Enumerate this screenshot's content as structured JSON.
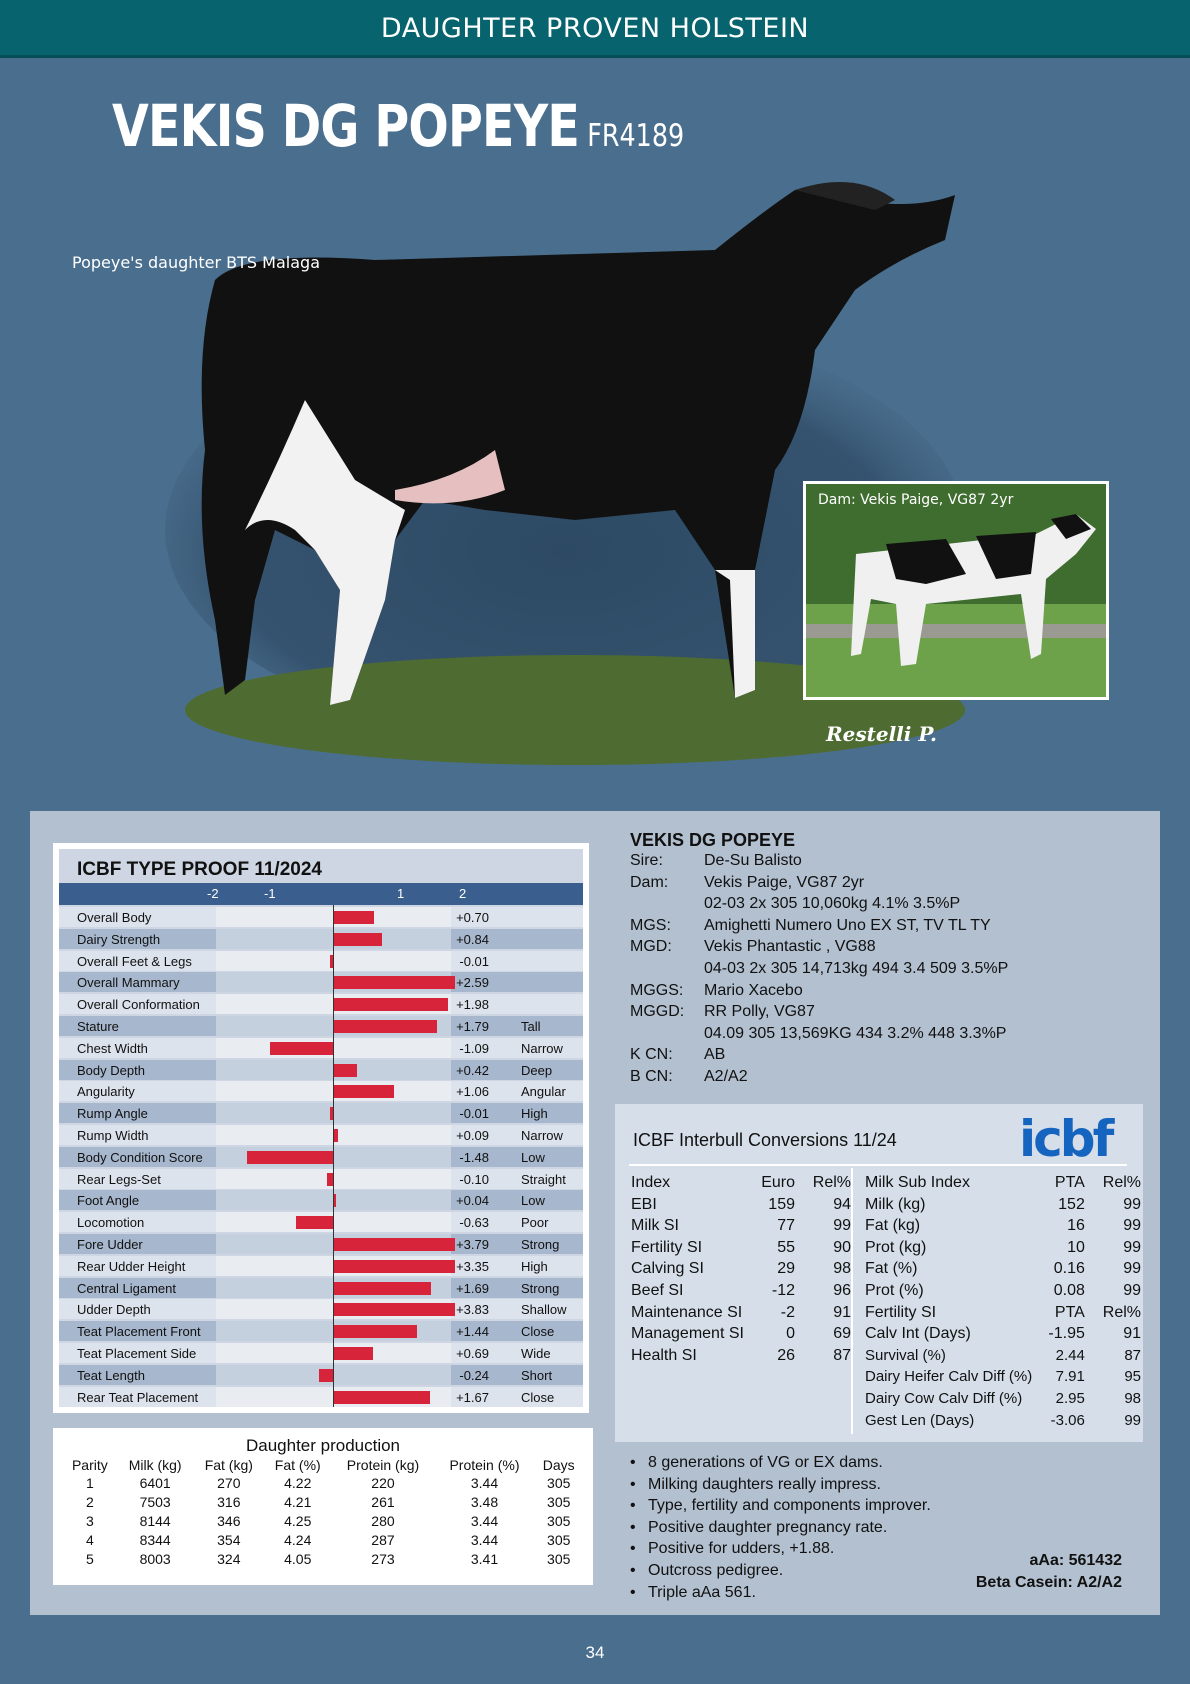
{
  "header": {
    "category": "DAUGHTER PROVEN HOLSTEIN"
  },
  "bull": {
    "name": "VEKIS DG POPEYE",
    "code": "FR4189"
  },
  "main_photo": {
    "caption": "Popeye's daughter BTS Malaga",
    "signature": "Restelli P."
  },
  "dam_photo": {
    "caption": "Dam: Vekis Paige, VG87 2yr"
  },
  "type_proof": {
    "title": "ICBF TYPE PROOF 11/2024",
    "scale": [
      "-2",
      "-1",
      "1",
      "2"
    ],
    "traits": [
      {
        "label": "Overall Body",
        "value": "+0.70",
        "num": 0.7,
        "desc": ""
      },
      {
        "label": "Dairy Strength",
        "value": "+0.84",
        "num": 0.84,
        "desc": ""
      },
      {
        "label": "Overall Feet & Legs",
        "value": "-0.01",
        "num": -0.01,
        "desc": ""
      },
      {
        "label": "Overall Mammary",
        "value": "+2.59",
        "num": 2.59,
        "desc": ""
      },
      {
        "label": "Overall Conformation",
        "value": "+1.98",
        "num": 1.98,
        "desc": ""
      },
      {
        "label": "Stature",
        "value": "+1.79",
        "num": 1.79,
        "desc": "Tall"
      },
      {
        "label": "Chest Width",
        "value": "-1.09",
        "num": -1.09,
        "desc": "Narrow"
      },
      {
        "label": "Body Depth",
        "value": "+0.42",
        "num": 0.42,
        "desc": "Deep"
      },
      {
        "label": "Angularity",
        "value": "+1.06",
        "num": 1.06,
        "desc": "Angular"
      },
      {
        "label": "Rump Angle",
        "value": "-0.01",
        "num": -0.01,
        "desc": "High"
      },
      {
        "label": "Rump Width",
        "value": "+0.09",
        "num": 0.09,
        "desc": "Narrow"
      },
      {
        "label": "Body Condition Score",
        "value": "-1.48",
        "num": -1.48,
        "desc": "Low"
      },
      {
        "label": "Rear Legs-Set",
        "value": "-0.10",
        "num": -0.1,
        "desc": "Straight"
      },
      {
        "label": "Foot Angle",
        "value": "+0.04",
        "num": 0.04,
        "desc": "Low"
      },
      {
        "label": "Locomotion",
        "value": "-0.63",
        "num": -0.63,
        "desc": "Poor"
      },
      {
        "label": "Fore Udder",
        "value": "+3.79",
        "num": 3.79,
        "desc": "Strong"
      },
      {
        "label": "Rear Udder Height",
        "value": "+3.35",
        "num": 3.35,
        "desc": "High"
      },
      {
        "label": "Central Ligament",
        "value": "+1.69",
        "num": 1.69,
        "desc": "Strong"
      },
      {
        "label": "Udder Depth",
        "value": "+3.83",
        "num": 3.83,
        "desc": "Shallow"
      },
      {
        "label": "Teat Placement Front",
        "value": "+1.44",
        "num": 1.44,
        "desc": "Close"
      },
      {
        "label": "Teat Placement Side",
        "value": "+0.69",
        "num": 0.69,
        "desc": "Wide"
      },
      {
        "label": "Teat Length",
        "value": "-0.24",
        "num": -0.24,
        "desc": "Short"
      },
      {
        "label": "Rear Teat Placement",
        "value": "+1.67",
        "num": 1.67,
        "desc": "Close"
      }
    ]
  },
  "production": {
    "title": "Daughter production",
    "columns": [
      "Parity",
      "Milk (kg)",
      "Fat (kg)",
      "Fat (%)",
      "Protein (kg)",
      "Protein (%)",
      "Days"
    ],
    "rows": [
      [
        "1",
        "6401",
        "270",
        "4.22",
        "220",
        "3.44",
        "305"
      ],
      [
        "2",
        "7503",
        "316",
        "4.21",
        "261",
        "3.48",
        "305"
      ],
      [
        "3",
        "8144",
        "346",
        "4.25",
        "280",
        "3.44",
        "305"
      ],
      [
        "4",
        "8344",
        "354",
        "4.24",
        "287",
        "3.44",
        "305"
      ],
      [
        "5",
        "8003",
        "324",
        "4.05",
        "273",
        "3.41",
        "305"
      ]
    ]
  },
  "pedigree": {
    "name": "VEKIS DG POPEYE",
    "rows": [
      {
        "key": "Sire:",
        "value": "De-Su Balisto"
      },
      {
        "key": "Dam:",
        "value": "Vekis Paige, VG87 2yr"
      },
      {
        "key": "",
        "value": "02-03  2x  305  10,060kg  4.1%  3.5%P"
      },
      {
        "key": "MGS:",
        "value": "Amighetti Numero Uno EX ST, TV TL TY"
      },
      {
        "key": "MGD:",
        "value": "Vekis Phantastic , VG88"
      },
      {
        "key": "",
        "value": "04-03  2x  305  14,713kg  494  3.4  509  3.5%P"
      },
      {
        "key": "MGGS:",
        "value": "Mario Xacebo"
      },
      {
        "key": "MGGD:",
        "value": "RR Polly, VG87"
      },
      {
        "key": "",
        "value": "04.09  305  13,569KG  434  3.2%  448  3.3%P"
      },
      {
        "key": "K CN:",
        "value": "AB"
      },
      {
        "key": "B CN:",
        "value": "A2/A2"
      }
    ]
  },
  "interbull": {
    "title": "ICBF Interbull Conversions 11/24",
    "logo": "icbf",
    "left": {
      "header": [
        "Index",
        "Euro",
        "Rel%"
      ],
      "rows": [
        [
          "EBI",
          "159",
          "94"
        ],
        [
          "Milk SI",
          "77",
          "99"
        ],
        [
          "Fertility SI",
          "55",
          "90"
        ],
        [
          "Calving SI",
          "29",
          "98"
        ],
        [
          "Beef SI",
          "-12",
          "96"
        ],
        [
          "Maintenance SI",
          "-2",
          "91"
        ],
        [
          "Management SI",
          "0",
          "69"
        ],
        [
          "Health SI",
          "26",
          "87"
        ]
      ]
    },
    "right": {
      "header": [
        "Milk Sub Index",
        "PTA",
        "Rel%"
      ],
      "rows": [
        [
          "Milk (kg)",
          "152",
          "99"
        ],
        [
          "Fat (kg)",
          "16",
          "99"
        ],
        [
          "Prot (kg)",
          "10",
          "99"
        ],
        [
          "Fat (%)",
          "0.16",
          "99"
        ],
        [
          "Prot (%)",
          "0.08",
          "99"
        ]
      ],
      "header2": [
        "Fertility SI",
        "PTA",
        "Rel%"
      ],
      "rows2": [
        [
          "Calv Int (Days)",
          "-1.95",
          "91"
        ],
        [
          "Survival (%)",
          "2.44",
          "87"
        ],
        [
          "Dairy Heifer Calv Diff (%)",
          "7.91",
          "95"
        ],
        [
          "Dairy Cow Calv Diff (%)",
          "2.95",
          "98"
        ],
        [
          "Gest Len (Days)",
          "-3.06",
          "99"
        ]
      ]
    }
  },
  "highlights": [
    "8 generations of VG or EX dams.",
    "Milking daughters really impress.",
    "Type, fertility and components improver.",
    "Positive daughter pregnancy rate.",
    "Positive for udders, +1.88.",
    "Outcross pedigree.",
    "Triple aAa 561."
  ],
  "genomic": {
    "aaa": "aAa: 561432",
    "beta_casein": "Beta Casein: A2/A2"
  },
  "page_number": "34",
  "colors": {
    "header": "#07636e",
    "background": "#4a6f8e",
    "bar": "#d7243a",
    "scale_bar": "#3a5f8f"
  }
}
